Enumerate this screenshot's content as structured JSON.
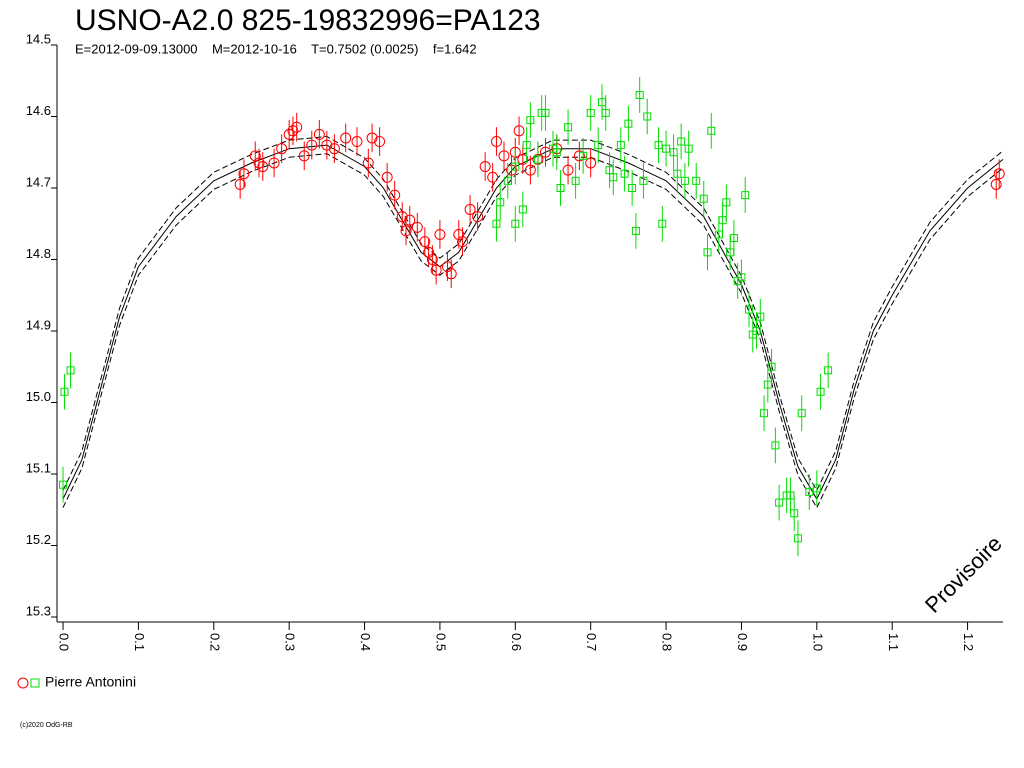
{
  "chart_data": {
    "type": "scatter",
    "title": "USNO-A2.0 825-19832996=PA123",
    "subtitle": "E=2012-09-09.13000    M=2012-10-16    T=0.7502 (0.0025)    f=1.642",
    "watermark": "Provisoire",
    "copyright": "(c)2020 OdG-RB",
    "legend": {
      "label": "Pierre Antonini"
    },
    "xlim": [
      -0.008,
      1.247
    ],
    "ylim": [
      15.3,
      14.5
    ],
    "xticks": [
      {
        "value": 0,
        "label": "0.0"
      },
      0.1,
      0.2,
      0.3,
      0.4,
      0.5,
      0.6,
      0.7,
      0.8,
      0.9,
      {
        "value": 1,
        "label": "1.0"
      },
      1.1,
      1.2
    ],
    "yticks": [
      14.5,
      14.6,
      14.7,
      14.8,
      14.9,
      {
        "value": 15,
        "label": "15.0"
      },
      15.1,
      15.2,
      15.3
    ],
    "model": {
      "x": [
        0,
        0.025,
        0.05,
        0.075,
        0.1,
        0.15,
        0.2,
        0.25,
        0.3,
        0.35,
        0.4,
        0.425,
        0.45,
        0.475,
        0.5,
        0.525,
        0.55,
        0.575,
        0.6,
        0.65,
        0.7,
        0.75,
        0.8,
        0.85,
        0.9,
        0.925,
        0.95,
        0.975,
        1,
        1.025,
        1.05,
        1.075,
        1.1,
        1.15,
        1.2,
        1.247
      ],
      "lines": [
        {
          "dashed": false,
          "values": [
            15.135,
            15.08,
            14.98,
            14.88,
            14.81,
            14.74,
            14.69,
            14.665,
            14.645,
            14.64,
            14.67,
            14.7,
            14.745,
            14.79,
            14.81,
            14.79,
            14.745,
            14.7,
            14.67,
            14.645,
            14.645,
            14.665,
            14.69,
            14.74,
            14.835,
            14.9,
            15,
            15.09,
            15.135,
            15.08,
            14.98,
            14.9,
            14.85,
            14.76,
            14.7,
            14.66
          ]
        },
        {
          "dashed": true,
          "values": [
            15.123,
            15.068,
            14.968,
            14.868,
            14.798,
            14.728,
            14.678,
            14.653,
            14.633,
            14.628,
            14.658,
            14.688,
            14.733,
            14.778,
            14.798,
            14.778,
            14.733,
            14.688,
            14.658,
            14.633,
            14.633,
            14.653,
            14.678,
            14.728,
            14.823,
            14.888,
            14.988,
            15.078,
            15.123,
            15.068,
            14.968,
            14.888,
            14.838,
            14.748,
            14.688,
            14.648
          ]
        },
        {
          "dashed": true,
          "values": [
            15.147,
            15.092,
            14.992,
            14.892,
            14.822,
            14.752,
            14.702,
            14.677,
            14.657,
            14.652,
            14.682,
            14.712,
            14.757,
            14.802,
            14.822,
            14.802,
            14.757,
            14.712,
            14.682,
            14.657,
            14.657,
            14.677,
            14.702,
            14.752,
            14.847,
            14.912,
            15.012,
            15.102,
            15.147,
            15.092,
            14.992,
            14.912,
            14.862,
            14.772,
            14.712,
            14.672
          ]
        }
      ]
    },
    "series": [
      {
        "color": "#ff0000",
        "marker": "circle",
        "x": [
          0.235,
          0.24,
          0.255,
          0.26,
          0.265,
          0.28,
          0.29,
          0.3,
          0.305,
          0.31,
          0.32,
          0.33,
          0.34,
          0.35,
          0.36,
          0.375,
          0.39,
          0.405,
          0.41,
          0.42,
          0.43,
          0.44,
          0.45,
          0.455,
          0.46,
          0.47,
          0.48,
          0.485,
          0.49,
          0.495,
          0.5,
          0.51,
          0.515,
          0.525,
          0.53,
          0.54,
          0.55,
          0.56,
          0.57,
          0.575,
          0.585,
          0.595,
          0.6,
          0.605,
          0.61,
          0.62,
          0.63,
          0.64,
          0.655,
          0.67,
          0.685,
          0.7,
          1.238,
          1.242
        ],
        "values": [
          14.695,
          14.68,
          14.655,
          14.665,
          14.67,
          14.665,
          14.645,
          14.625,
          14.62,
          14.615,
          14.655,
          14.64,
          14.625,
          14.64,
          14.645,
          14.63,
          14.635,
          14.665,
          14.63,
          14.635,
          14.685,
          14.71,
          14.74,
          14.76,
          14.745,
          14.755,
          14.775,
          14.79,
          14.8,
          14.815,
          14.765,
          14.81,
          14.82,
          14.765,
          14.775,
          14.73,
          14.74,
          14.67,
          14.685,
          14.635,
          14.655,
          14.675,
          14.65,
          14.62,
          14.66,
          14.675,
          14.66,
          14.65,
          14.645,
          14.675,
          14.655,
          14.665,
          14.695,
          14.68
        ],
        "errors": [
          0.02,
          0.02,
          0.02,
          0.02,
          0.02,
          0.02,
          0.02,
          0.02,
          0.02,
          0.02,
          0.02,
          0.02,
          0.02,
          0.02,
          0.02,
          0.02,
          0.02,
          0.02,
          0.02,
          0.02,
          0.02,
          0.02,
          0.02,
          0.02,
          0.02,
          0.02,
          0.02,
          0.02,
          0.02,
          0.02,
          0.02,
          0.02,
          0.02,
          0.02,
          0.02,
          0.02,
          0.02,
          0.02,
          0.02,
          0.02,
          0.02,
          0.02,
          0.02,
          0.02,
          0.02,
          0.02,
          0.02,
          0.02,
          0.02,
          0.02,
          0.02,
          0.02,
          0.02,
          0.02
        ]
      },
      {
        "color": "#00dd00",
        "marker": "square",
        "x": [
          0,
          0.002,
          0.01,
          0.575,
          0.58,
          0.59,
          0.6,
          0.6,
          0.61,
          0.615,
          0.62,
          0.63,
          0.635,
          0.64,
          0.65,
          0.655,
          0.66,
          0.67,
          0.68,
          0.69,
          0.7,
          0.71,
          0.715,
          0.72,
          0.725,
          0.73,
          0.74,
          0.745,
          0.75,
          0.755,
          0.76,
          0.765,
          0.77,
          0.775,
          0.79,
          0.795,
          0.8,
          0.81,
          0.815,
          0.82,
          0.825,
          0.83,
          0.84,
          0.85,
          0.855,
          0.86,
          0.87,
          0.875,
          0.88,
          0.885,
          0.89,
          0.895,
          0.9,
          0.905,
          0.91,
          0.915,
          0.92,
          0.925,
          0.93,
          0.935,
          0.94,
          0.945,
          0.95,
          0.96,
          0.965,
          0.97,
          0.975,
          0.98,
          0.99,
          1,
          1.005,
          1.015
        ],
        "values": [
          15.115,
          14.985,
          14.955,
          14.75,
          14.72,
          14.69,
          14.67,
          14.75,
          14.73,
          14.64,
          14.605,
          14.66,
          14.595,
          14.595,
          14.645,
          14.65,
          14.7,
          14.615,
          14.69,
          14.655,
          14.595,
          14.64,
          14.58,
          14.595,
          14.675,
          14.685,
          14.64,
          14.68,
          14.61,
          14.7,
          14.76,
          14.57,
          14.69,
          14.6,
          14.64,
          14.75,
          14.645,
          14.65,
          14.68,
          14.635,
          14.69,
          14.645,
          14.69,
          14.715,
          14.79,
          14.62,
          14.765,
          14.745,
          14.72,
          14.79,
          14.77,
          14.83,
          14.825,
          14.71,
          14.87,
          14.905,
          14.9,
          14.88,
          15.015,
          14.975,
          14.95,
          15.06,
          15.14,
          15.13,
          15.13,
          15.155,
          15.19,
          15.015,
          15.125,
          15.12,
          14.985,
          14.955
        ],
        "errors": [
          0.025,
          0.025,
          0.025,
          0.025,
          0.025,
          0.025,
          0.025,
          0.025,
          0.025,
          0.025,
          0.025,
          0.025,
          0.025,
          0.025,
          0.025,
          0.025,
          0.025,
          0.025,
          0.025,
          0.025,
          0.025,
          0.025,
          0.025,
          0.025,
          0.025,
          0.025,
          0.025,
          0.025,
          0.025,
          0.025,
          0.025,
          0.025,
          0.025,
          0.025,
          0.025,
          0.025,
          0.025,
          0.025,
          0.025,
          0.025,
          0.025,
          0.025,
          0.025,
          0.025,
          0.025,
          0.025,
          0.025,
          0.025,
          0.025,
          0.025,
          0.025,
          0.025,
          0.025,
          0.025,
          0.025,
          0.025,
          0.025,
          0.025,
          0.025,
          0.025,
          0.025,
          0.025,
          0.025,
          0.025,
          0.025,
          0.025,
          0.025,
          0.025,
          0.025,
          0.025,
          0.025,
          0.025
        ]
      }
    ]
  }
}
